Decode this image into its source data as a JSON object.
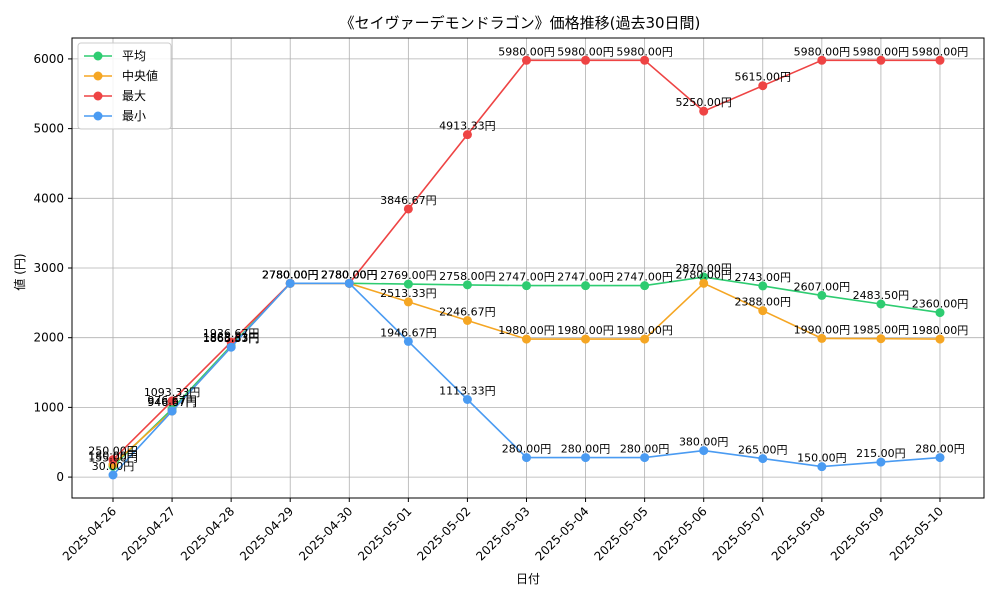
{
  "chart_data": {
    "type": "line",
    "title": "《セイヴァーデモンドラゴン》価格推移(過去30日間)",
    "xlabel": "日付",
    "ylabel": "値 (円)",
    "ylim": [
      -300,
      6300
    ],
    "yticks": [
      0,
      1000,
      2000,
      3000,
      4000,
      5000,
      6000
    ],
    "grid": true,
    "legend_position": "top-left",
    "label_suffix": "円",
    "x": [
      "2025-04-26",
      "2025-04-27",
      "2025-04-28",
      "2025-04-29",
      "2025-04-30",
      "2025-05-01",
      "2025-05-02",
      "2025-05-03",
      "2025-05-04",
      "2025-05-05",
      "2025-05-06",
      "2025-05-07",
      "2025-05-08",
      "2025-05-09",
      "2025-05-10"
    ],
    "series": [
      {
        "name": "平均",
        "color": "#2ecc71",
        "values": [
          155.0,
          976.67,
          1883.33,
          2780.0,
          2780.0,
          2769.0,
          2758.0,
          2747.0,
          2747.0,
          2747.0,
          2870.0,
          2743.0,
          2607.0,
          2483.5,
          2360.0
        ]
      },
      {
        "name": "中央値",
        "color": "#f5a623",
        "values": [
          180.0,
          946.67,
          1866.67,
          2780.0,
          2780.0,
          2513.33,
          2246.67,
          1980.0,
          1980.0,
          1980.0,
          2780.0,
          2388.0,
          1990.0,
          1985.0,
          1980.0
        ]
      },
      {
        "name": "最大",
        "color": "#ee4444",
        "values": [
          250.0,
          1093.33,
          1936.67,
          2780.0,
          2780.0,
          3846.67,
          4913.33,
          5980.0,
          5980.0,
          5980.0,
          5250.0,
          5615.0,
          5980.0,
          5980.0,
          5980.0
        ]
      },
      {
        "name": "最小",
        "color": "#4a9bf2",
        "values": [
          30.0,
          946.67,
          1863.33,
          2780.0,
          2780.0,
          1946.67,
          1113.33,
          280.0,
          280.0,
          280.0,
          380.0,
          265.0,
          150.0,
          215.0,
          280.0
        ]
      }
    ]
  }
}
